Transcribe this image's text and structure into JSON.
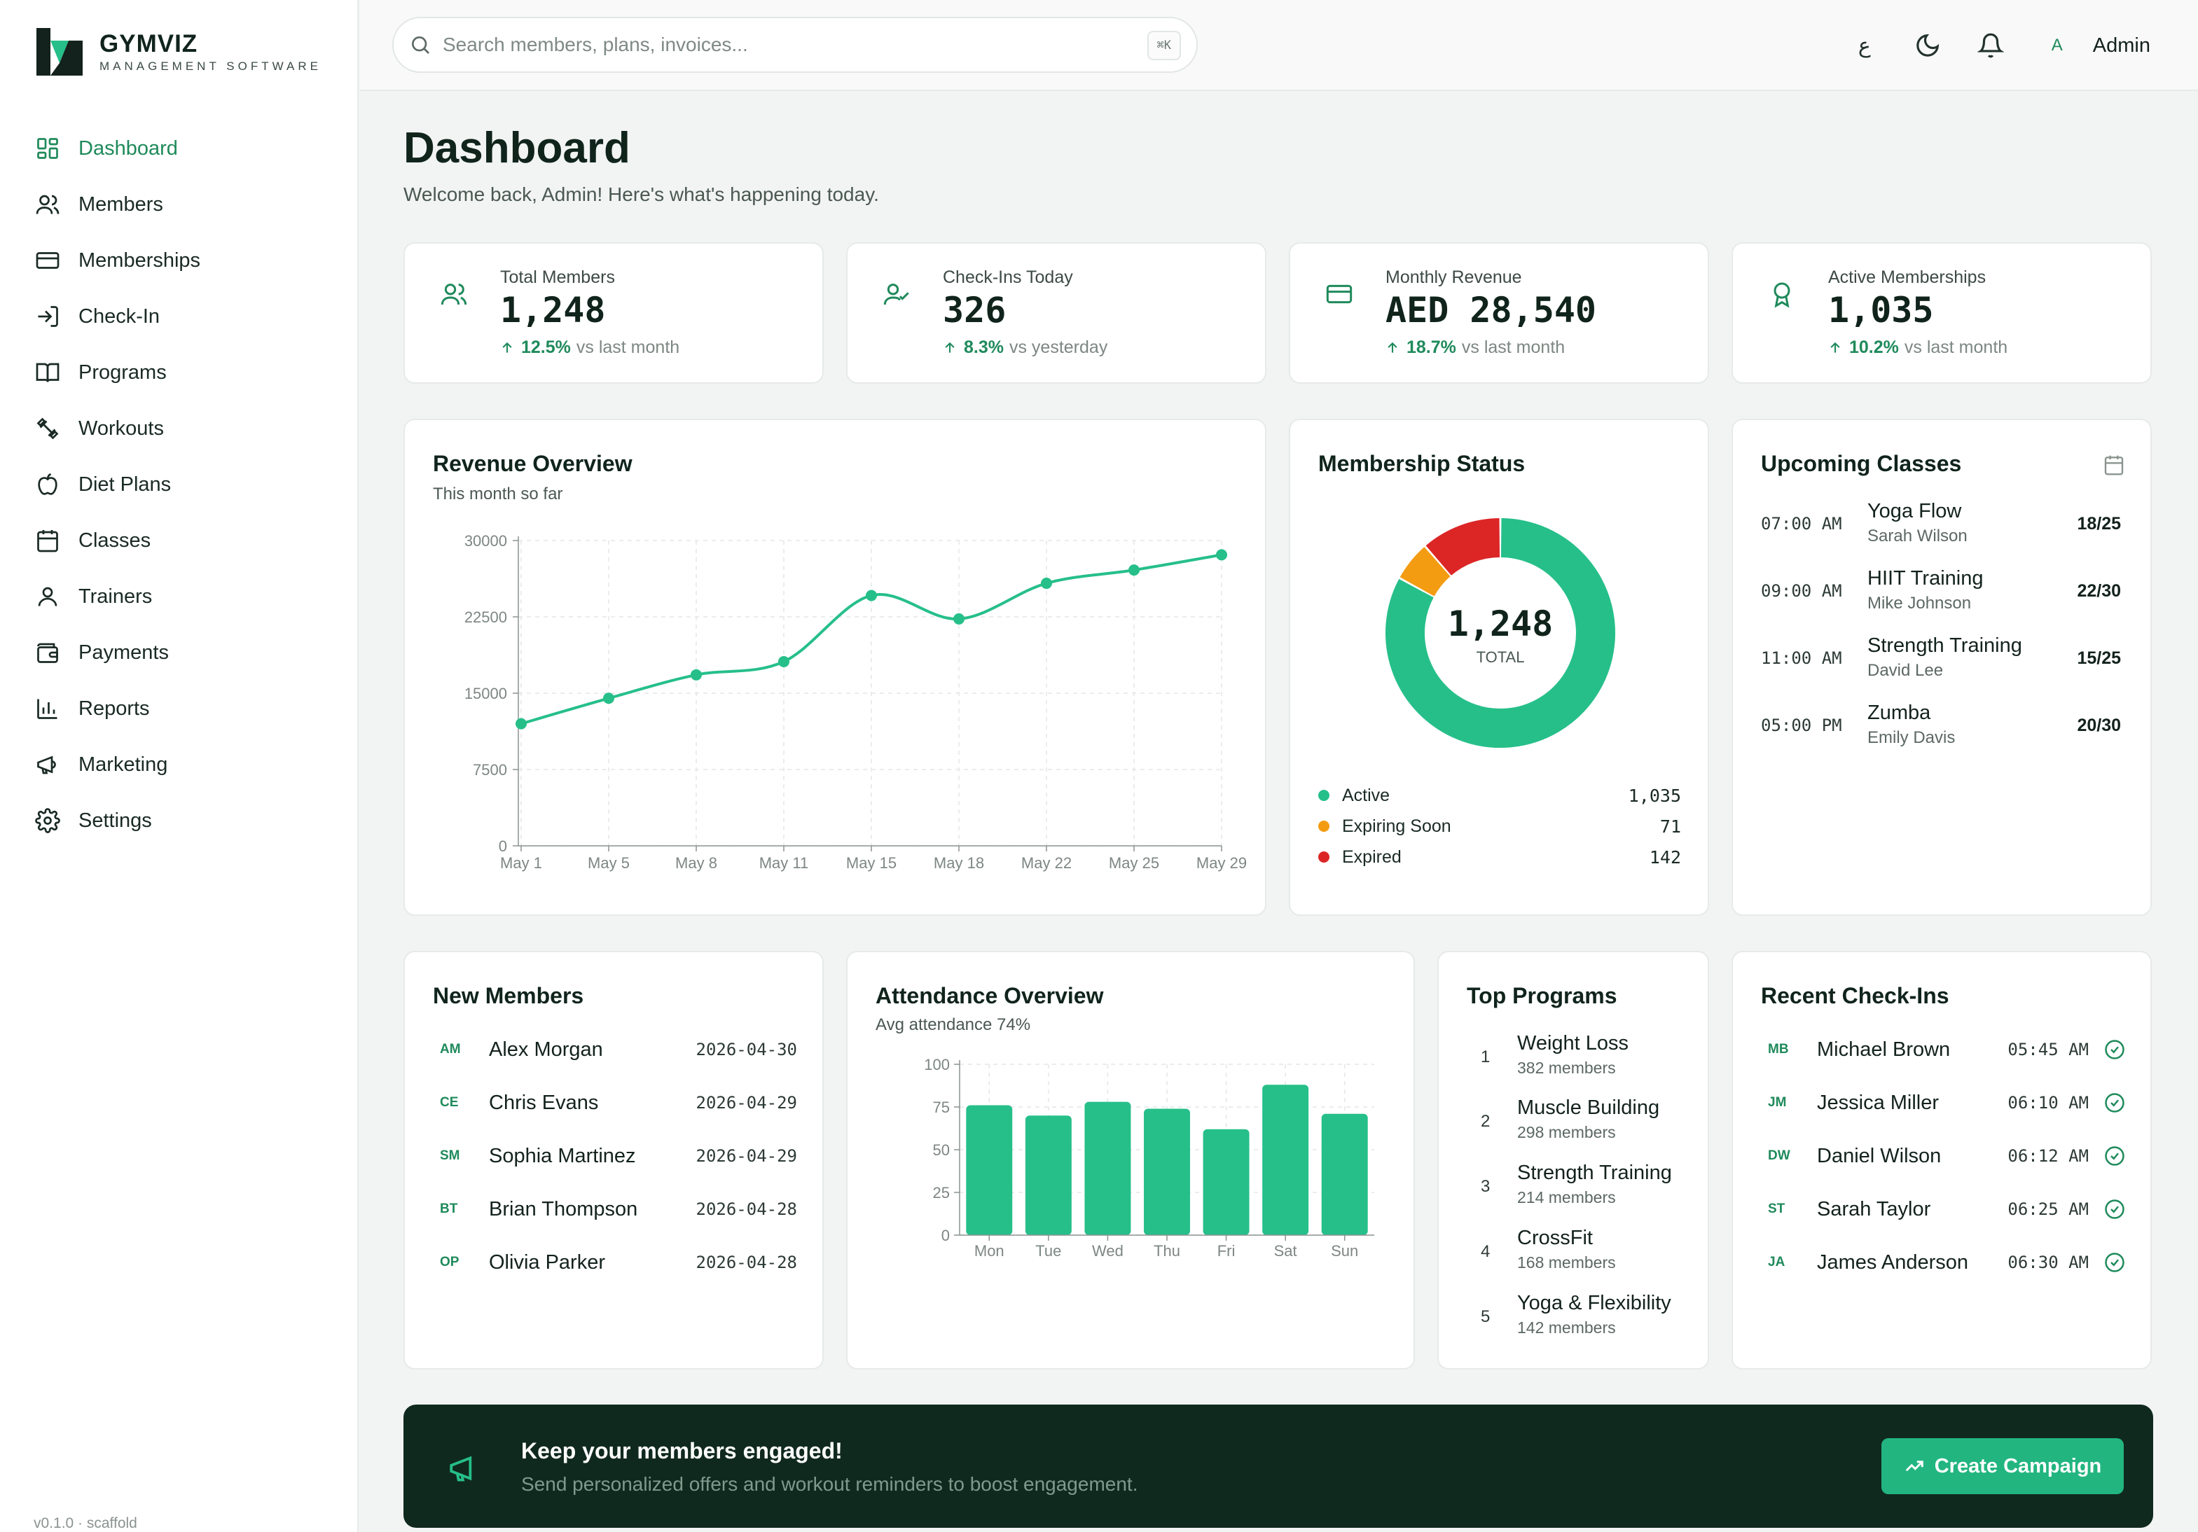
{
  "brand": {
    "name": "GYMVIZ",
    "subtitle": "MANAGEMENT SOFTWARE"
  },
  "sidebar": {
    "items": [
      {
        "label": "Dashboard",
        "icon": "grid-icon",
        "active": true
      },
      {
        "label": "Members",
        "icon": "users-icon"
      },
      {
        "label": "Memberships",
        "icon": "card-icon"
      },
      {
        "label": "Check-In",
        "icon": "login-icon"
      },
      {
        "label": "Programs",
        "icon": "book-icon"
      },
      {
        "label": "Workouts",
        "icon": "dumbbell-icon"
      },
      {
        "label": "Diet Plans",
        "icon": "apple-icon"
      },
      {
        "label": "Classes",
        "icon": "calendar-icon"
      },
      {
        "label": "Trainers",
        "icon": "user-icon"
      },
      {
        "label": "Payments",
        "icon": "wallet-icon"
      },
      {
        "label": "Reports",
        "icon": "bar-chart-icon"
      },
      {
        "label": "Marketing",
        "icon": "megaphone-icon"
      },
      {
        "label": "Settings",
        "icon": "gear-icon"
      }
    ],
    "version": "v0.1.0 · scaffold"
  },
  "topbar": {
    "search_placeholder": "Search members, plans, invoices...",
    "shortcut": "⌘K",
    "lang": "ع",
    "user_initial": "A",
    "user_name": "Admin"
  },
  "page": {
    "title": "Dashboard",
    "subtitle": "Welcome back, Admin! Here's what's happening today."
  },
  "stats": [
    {
      "label": "Total Members",
      "value": "1,248",
      "delta": "12.5%",
      "delta_text": "vs last month",
      "icon": "users-icon"
    },
    {
      "label": "Check-Ins Today",
      "value": "326",
      "delta": "8.3%",
      "delta_text": "vs yesterday",
      "icon": "user-check-icon"
    },
    {
      "label": "Monthly Revenue",
      "value": "AED 28,540",
      "delta": "18.7%",
      "delta_text": "vs last month",
      "icon": "card-icon"
    },
    {
      "label": "Active Memberships",
      "value": "1,035",
      "delta": "10.2%",
      "delta_text": "vs last month",
      "icon": "award-icon"
    }
  ],
  "revenue": {
    "title": "Revenue Overview",
    "subtitle": "This month so far"
  },
  "membership_status": {
    "title": "Membership Status",
    "total": "1,248",
    "total_label": "TOTAL",
    "legend": [
      {
        "name": "Active",
        "value": "1,035",
        "color": "#26bf8a"
      },
      {
        "name": "Expiring Soon",
        "value": "71",
        "color": "#f39c12"
      },
      {
        "name": "Expired",
        "value": "142",
        "color": "#dc2626"
      }
    ]
  },
  "upcoming_classes": {
    "title": "Upcoming Classes",
    "items": [
      {
        "time": "07:00 AM",
        "name": "Yoga Flow",
        "trainer": "Sarah Wilson",
        "capacity": "18/25"
      },
      {
        "time": "09:00 AM",
        "name": "HIIT Training",
        "trainer": "Mike Johnson",
        "capacity": "22/30"
      },
      {
        "time": "11:00 AM",
        "name": "Strength Training",
        "trainer": "David Lee",
        "capacity": "15/25"
      },
      {
        "time": "05:00 PM",
        "name": "Zumba",
        "trainer": "Emily Davis",
        "capacity": "20/30"
      }
    ]
  },
  "new_members": {
    "title": "New Members",
    "items": [
      {
        "initials": "AM",
        "name": "Alex Morgan",
        "date": "2026-04-30"
      },
      {
        "initials": "CE",
        "name": "Chris Evans",
        "date": "2026-04-29"
      },
      {
        "initials": "SM",
        "name": "Sophia Martinez",
        "date": "2026-04-29"
      },
      {
        "initials": "BT",
        "name": "Brian Thompson",
        "date": "2026-04-28"
      },
      {
        "initials": "OP",
        "name": "Olivia Parker",
        "date": "2026-04-28"
      }
    ]
  },
  "attendance": {
    "title": "Attendance Overview",
    "subtitle": "Avg attendance 74%"
  },
  "top_programs": {
    "title": "Top Programs",
    "items": [
      {
        "rank": "1",
        "name": "Weight Loss",
        "count": "382 members"
      },
      {
        "rank": "2",
        "name": "Muscle Building",
        "count": "298 members"
      },
      {
        "rank": "3",
        "name": "Strength Training",
        "count": "214 members"
      },
      {
        "rank": "4",
        "name": "CrossFit",
        "count": "168 members"
      },
      {
        "rank": "5",
        "name": "Yoga & Flexibility",
        "count": "142 members"
      }
    ]
  },
  "recent_checkins": {
    "title": "Recent Check-Ins",
    "items": [
      {
        "initials": "MB",
        "name": "Michael Brown",
        "time": "05:45 AM"
      },
      {
        "initials": "JM",
        "name": "Jessica Miller",
        "time": "06:10 AM"
      },
      {
        "initials": "DW",
        "name": "Daniel Wilson",
        "time": "06:12 AM"
      },
      {
        "initials": "ST",
        "name": "Sarah Taylor",
        "time": "06:25 AM"
      },
      {
        "initials": "JA",
        "name": "James Anderson",
        "time": "06:30 AM"
      }
    ]
  },
  "banner": {
    "title": "Keep your members engaged!",
    "subtitle": "Send personalized offers and workout reminders to boost engagement.",
    "button": "Create Campaign"
  },
  "colors": {
    "accent": "#26bf8a",
    "accent_dark": "#1f8a5b",
    "banner_bg": "#10291f",
    "warning": "#f39c12",
    "danger": "#dc2626"
  },
  "chart_data": [
    {
      "type": "line",
      "x": [
        "May 1",
        "May 5",
        "May 8",
        "May 11",
        "May 15",
        "May 18",
        "May 22",
        "May 25",
        "May 29"
      ],
      "values": [
        12000,
        14500,
        16800,
        18100,
        24600,
        22300,
        25800,
        27100,
        28600
      ],
      "yticks": [
        0,
        7500,
        15000,
        22500,
        30000
      ],
      "ylim": [
        0,
        30000
      ],
      "grid": true,
      "color": "#26bf8a"
    },
    {
      "type": "pie",
      "categories": [
        "Active",
        "Expiring Soon",
        "Expired"
      ],
      "values": [
        1035,
        71,
        142
      ],
      "colors": [
        "#26bf8a",
        "#f39c12",
        "#dc2626"
      ]
    },
    {
      "type": "bar",
      "categories": [
        "Mon",
        "Tue",
        "Wed",
        "Thu",
        "Fri",
        "Sat",
        "Sun"
      ],
      "values": [
        76,
        70,
        78,
        74,
        62,
        88,
        71
      ],
      "yticks": [
        0,
        25,
        50,
        75,
        100
      ],
      "ylim": [
        0,
        100
      ],
      "grid": true,
      "color": "#26bf8a"
    }
  ]
}
